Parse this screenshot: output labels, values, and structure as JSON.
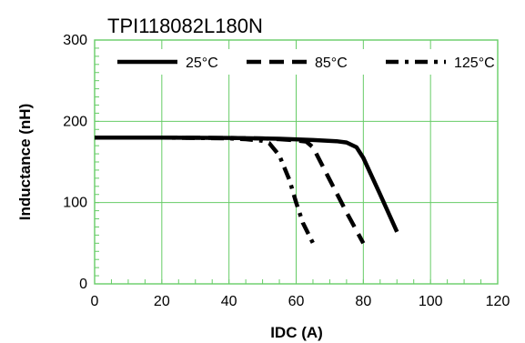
{
  "chart_data": {
    "type": "line",
    "title": "TPI118082L180N",
    "xlabel": "IDC (A)",
    "ylabel": "Inductance (nH)",
    "xlim": [
      0,
      120
    ],
    "ylim": [
      0,
      300
    ],
    "xticks": [
      "0",
      "20",
      "40",
      "60",
      "80",
      "100",
      "120"
    ],
    "yticks": [
      "0",
      "100",
      "200",
      "300"
    ],
    "grid": true,
    "grid_color": "#66cc66",
    "legend_position": "top",
    "series": [
      {
        "name": "25°C",
        "dash": "solid",
        "color": "#000000",
        "x": [
          0,
          20,
          40,
          55,
          65,
          72,
          75,
          78,
          80,
          85,
          90
        ],
        "y": [
          180,
          180,
          179.5,
          178.5,
          177,
          175.5,
          174,
          168,
          155,
          110,
          64
        ]
      },
      {
        "name": "85°C",
        "dash": "dashed",
        "color": "#000000",
        "x": [
          0,
          20,
          40,
          50,
          55,
          60,
          63,
          65,
          70,
          75,
          80
        ],
        "y": [
          180,
          180,
          179.5,
          179,
          178,
          176.5,
          175,
          168,
          128,
          88,
          50
        ]
      },
      {
        "name": "125°C",
        "dash": "dashdot",
        "color": "#000000",
        "x": [
          0,
          20,
          40,
          45,
          50,
          52,
          55,
          58,
          60,
          62,
          65
        ],
        "y": [
          180,
          180,
          179,
          178,
          176,
          173,
          158,
          128,
          100,
          75,
          50
        ]
      }
    ]
  }
}
